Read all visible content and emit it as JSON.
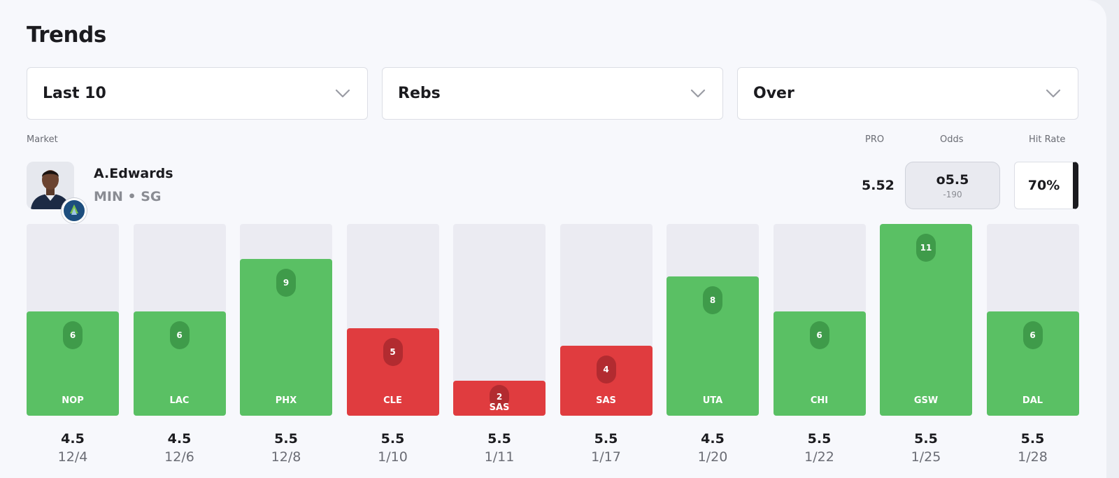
{
  "title": "Trends",
  "filters": [
    {
      "value": "Last 10",
      "icon": "chevron-down-icon"
    },
    {
      "value": "Rebs",
      "icon": "chevron-down-icon"
    },
    {
      "value": "Over",
      "icon": "chevron-down-icon"
    }
  ],
  "headers": {
    "market": "Market",
    "pro": "PRO",
    "odds": "Odds",
    "hit_rate": "Hit Rate"
  },
  "player": {
    "name": "A.Edwards",
    "team_position": "MIN • SG"
  },
  "pro_value": "5.52",
  "odds": {
    "line": "o5.5",
    "price": "-190"
  },
  "hit_rate": "70%",
  "colors": {
    "over": "#5ac064",
    "under": "#e03c3f",
    "track": "#ebebf2"
  },
  "chart_data": {
    "type": "bar",
    "ylim": [
      0,
      11
    ],
    "games": [
      {
        "opponent": "NOP",
        "value": 6,
        "line": "4.5",
        "date": "12/4",
        "result": "over"
      },
      {
        "opponent": "LAC",
        "value": 6,
        "line": "4.5",
        "date": "12/6",
        "result": "over"
      },
      {
        "opponent": "PHX",
        "value": 9,
        "line": "5.5",
        "date": "12/8",
        "result": "over"
      },
      {
        "opponent": "CLE",
        "value": 5,
        "line": "5.5",
        "date": "1/10",
        "result": "under"
      },
      {
        "opponent": "SAS",
        "value": 2,
        "line": "5.5",
        "date": "1/11",
        "result": "under"
      },
      {
        "opponent": "SAS",
        "value": 4,
        "line": "5.5",
        "date": "1/17",
        "result": "under"
      },
      {
        "opponent": "UTA",
        "value": 8,
        "line": "4.5",
        "date": "1/20",
        "result": "over"
      },
      {
        "opponent": "CHI",
        "value": 6,
        "line": "5.5",
        "date": "1/22",
        "result": "over"
      },
      {
        "opponent": "GSW",
        "value": 11,
        "line": "5.5",
        "date": "1/25",
        "result": "over"
      },
      {
        "opponent": "DAL",
        "value": 6,
        "line": "5.5",
        "date": "1/28",
        "result": "over"
      }
    ]
  }
}
